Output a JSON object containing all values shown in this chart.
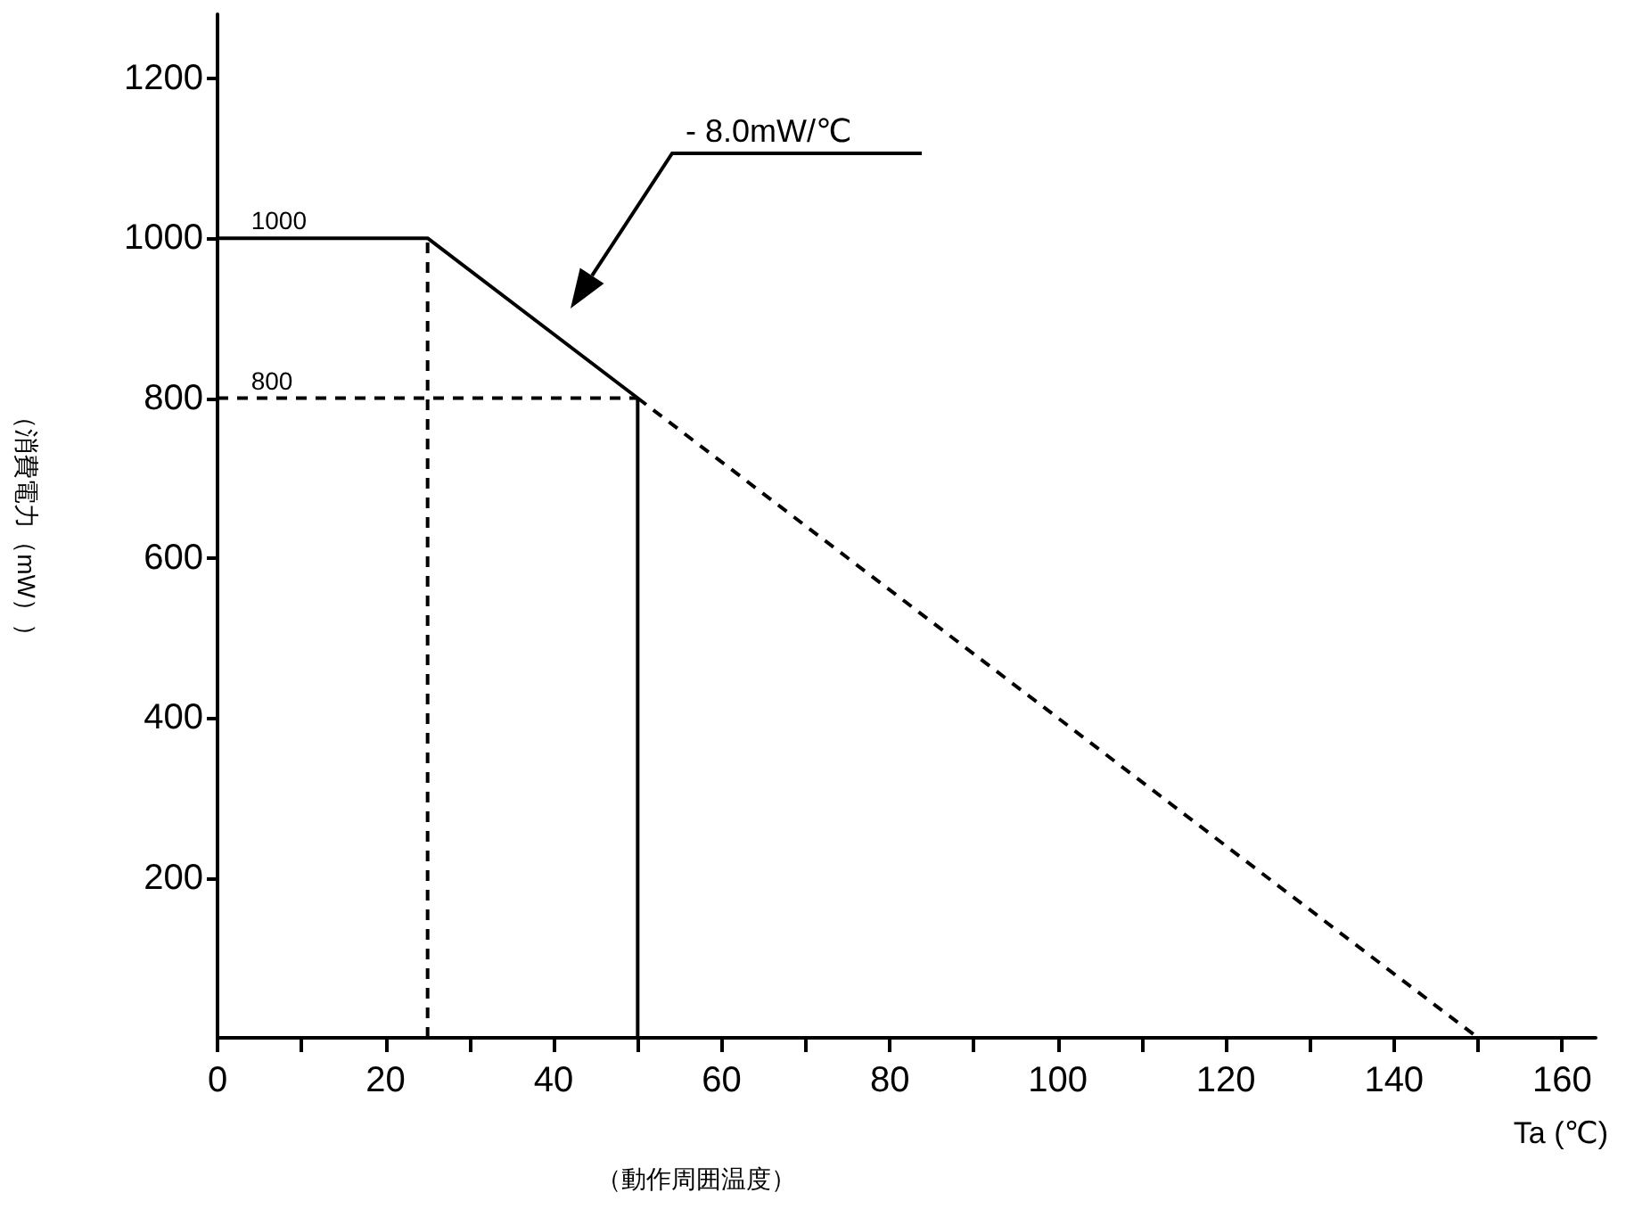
{
  "chart_data": {
    "type": "line",
    "xlabel": "（動作周囲温度）",
    "ylabel": "（消費電力（mW））",
    "xlim": [
      0,
      164
    ],
    "ylim": [
      0,
      1280
    ],
    "xticks": [
      0,
      {
        "value": 10,
        "label": null
      },
      20,
      {
        "value": 30,
        "label": null
      },
      40,
      {
        "value": 50,
        "label": null
      },
      60,
      {
        "value": 70,
        "label": null
      },
      80,
      {
        "value": 90,
        "label": null
      },
      100,
      {
        "value": 110,
        "label": null
      },
      120,
      {
        "value": 130,
        "label": null
      },
      140,
      {
        "value": 150,
        "label": null
      },
      160
    ],
    "yticks": [
      200,
      400,
      600,
      800,
      1000,
      1200
    ],
    "series": [
      {
        "color": "#000000",
        "line_style": "solid",
        "x": [
          0,
          25,
          50,
          50
        ],
        "values": [
          1000,
          1000,
          800,
          0
        ]
      },
      {
        "color": "#000000",
        "line_style": "dashed",
        "x": [
          50,
          150
        ],
        "values": [
          800,
          0
        ]
      },
      {
        "color": "#000000",
        "line_style": "dashed",
        "x": [
          25,
          25
        ],
        "values": [
          0,
          1000
        ]
      },
      {
        "color": "#000000",
        "line_style": "dashed",
        "x": [
          0,
          50
        ],
        "values": [
          800,
          800
        ]
      }
    ],
    "annotations": [
      {
        "text": "1000",
        "x": 4,
        "y": 1000
      },
      {
        "text": "800",
        "x": 4,
        "y": 800
      },
      "- 8.0mW/℃",
      "Ta (℃)"
    ],
    "grid": false,
    "marker": "none"
  }
}
